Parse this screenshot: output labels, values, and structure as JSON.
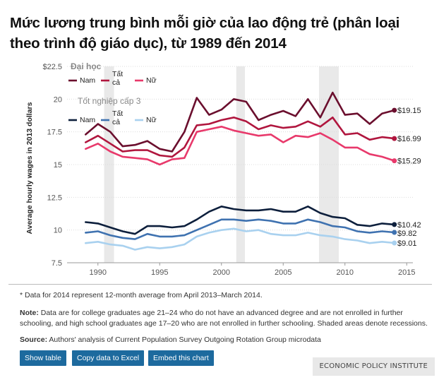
{
  "title": "Mức lương trung bình mỗi giờ của lao động trẻ (phân loại theo trình độ giáo dục), từ 1989 đến 2014",
  "chart_data": {
    "type": "line",
    "ylabel": "Average hourly wages in 2013 dollars",
    "xlim": [
      1987.5,
      2015.5
    ],
    "ylim": [
      7.5,
      22.5
    ],
    "yticks": [
      7.5,
      10,
      12.5,
      15,
      17.5,
      20,
      22.5
    ],
    "ytick_labels": [
      "7.5",
      "10",
      "12.5",
      "15",
      "17.5",
      "20",
      "$22.5"
    ],
    "xticks": [
      1990,
      1995,
      2000,
      2005,
      2010,
      2015
    ],
    "xtick_labels": [
      "1990",
      "1995",
      "2000",
      "2005",
      "2010",
      "2015"
    ],
    "recessions": [
      [
        1990.5,
        1991.3
      ],
      [
        2001.2,
        2001.9
      ],
      [
        2007.9,
        2009.5
      ]
    ],
    "x": [
      1989,
      1990,
      1991,
      1992,
      1993,
      1994,
      1995,
      1996,
      1997,
      1998,
      1999,
      2000,
      2001,
      2002,
      2003,
      2004,
      2005,
      2006,
      2007,
      2008,
      2009,
      2010,
      2011,
      2012,
      2013,
      2014
    ],
    "groups": [
      {
        "name": "Đại học",
        "series": [
          {
            "name": "Nam",
            "color": "#6b0f2e",
            "values": [
              17.3,
              18.1,
              17.5,
              16.4,
              16.5,
              16.8,
              16.2,
              16.0,
              17.5,
              20.1,
              18.8,
              19.2,
              20.0,
              19.8,
              18.4,
              18.8,
              19.1,
              18.7,
              20.0,
              18.6,
              20.5,
              18.8,
              18.9,
              18.1,
              18.9,
              19.15
            ]
          },
          {
            "name": "Tất cả",
            "color": "#b0163e",
            "values": [
              16.7,
              17.2,
              16.6,
              16.0,
              16.1,
              16.1,
              15.7,
              15.6,
              16.3,
              18.0,
              18.1,
              18.4,
              18.6,
              18.3,
              17.7,
              18.0,
              17.8,
              17.9,
              18.3,
              17.9,
              18.6,
              17.3,
              17.4,
              16.9,
              17.1,
              16.99
            ]
          },
          {
            "name": "Nữ",
            "color": "#e8396b",
            "values": [
              16.2,
              16.6,
              16.0,
              15.6,
              15.5,
              15.4,
              15.0,
              15.4,
              15.5,
              17.5,
              17.7,
              17.9,
              17.6,
              17.4,
              17.2,
              17.3,
              16.7,
              17.2,
              17.1,
              17.4,
              16.9,
              16.3,
              16.3,
              15.8,
              15.6,
              15.29
            ]
          }
        ]
      },
      {
        "name": "Tốt nghiệp cấp 3",
        "series": [
          {
            "name": "Nam",
            "color": "#0d1f3c",
            "values": [
              10.6,
              10.5,
              10.2,
              9.9,
              9.7,
              10.3,
              10.3,
              10.2,
              10.3,
              10.8,
              11.4,
              11.8,
              11.6,
              11.5,
              11.5,
              11.6,
              11.4,
              11.4,
              11.8,
              11.3,
              11.0,
              10.9,
              10.4,
              10.3,
              10.5,
              10.42
            ]
          },
          {
            "name": "Tất cả",
            "color": "#3f72b0",
            "values": [
              9.8,
              9.9,
              9.6,
              9.4,
              9.3,
              9.7,
              9.5,
              9.5,
              9.6,
              10.0,
              10.4,
              10.8,
              10.8,
              10.7,
              10.8,
              10.7,
              10.5,
              10.5,
              10.8,
              10.6,
              10.3,
              10.2,
              9.9,
              9.8,
              9.9,
              9.82
            ]
          },
          {
            "name": "Nữ",
            "color": "#a9d1ef",
            "values": [
              9.0,
              9.1,
              8.9,
              8.8,
              8.5,
              8.7,
              8.6,
              8.7,
              8.9,
              9.5,
              9.8,
              10.0,
              10.1,
              9.9,
              10.0,
              9.7,
              9.6,
              9.6,
              9.8,
              9.6,
              9.5,
              9.3,
              9.2,
              9.0,
              9.1,
              9.01
            ]
          }
        ]
      }
    ],
    "end_labels": [
      "$19.15",
      "$16.99",
      "$15.29",
      "$10.42",
      "$9.82",
      "$9.01"
    ]
  },
  "notes": {
    "asterisk": "* Data for 2014 represent 12-month average from April 2013–March 2014.",
    "note_label": "Note:",
    "note_text": " Data are for college graduates age 21–24 who do not have an advanced degree and are not enrolled in further schooling, and high school graduates age 17–20 who are not enrolled in further schooling. Shaded areas denote recessions.",
    "source_label": "Source:",
    "source_text": " Authors' analysis of Current Population Survey Outgoing Rotation Group microdata"
  },
  "buttons": {
    "show_table": "Show table",
    "copy_excel": "Copy data to Excel",
    "embed": "Embed this chart"
  },
  "brand": "ECONOMIC POLICY INSTITUTE",
  "colors": {
    "accent": "#1d6a9e",
    "recession": "#e9e9e9"
  }
}
